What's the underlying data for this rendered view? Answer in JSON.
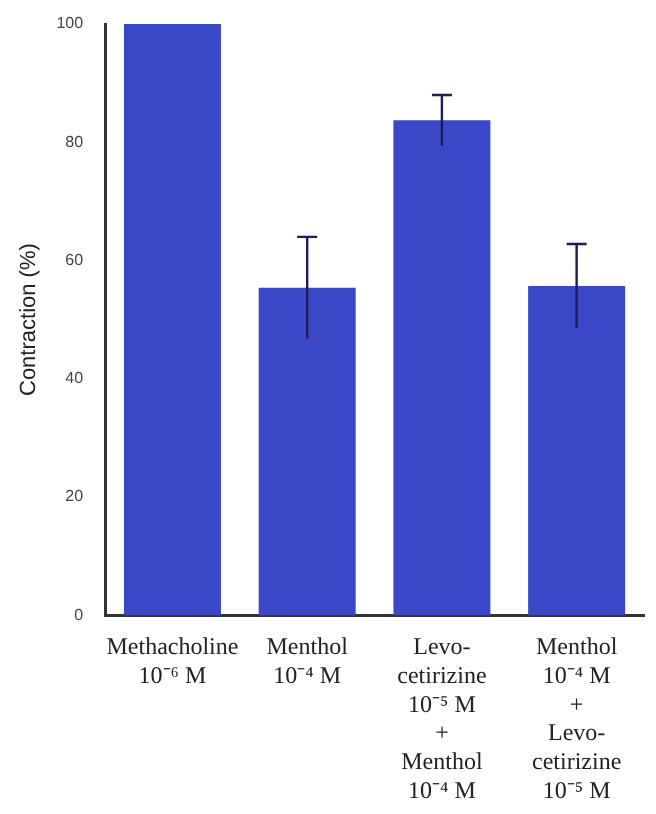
{
  "chart_data": {
    "type": "bar",
    "ylabel": "Contraction (%)",
    "categories": [
      "Methacholine\n10⁻⁶ M",
      "Menthol\n10⁻⁴ M",
      "Levo-\ncetirizine\n10⁻⁵ M\n+\nMenthol\n10⁻⁴ M",
      "Menthol\n10⁻⁴ M\n+\nLevo-\ncetirizine\n10⁻⁵ M"
    ],
    "values": [
      100,
      55.4,
      83.7,
      55.7
    ],
    "errors": [
      null,
      8.6,
      4.3,
      7.1
    ],
    "color": "#3a48c8",
    "ylim": [
      0,
      100
    ],
    "yticks": [
      0,
      20,
      40,
      60,
      80,
      100
    ],
    "grid": false,
    "legend": false
  }
}
